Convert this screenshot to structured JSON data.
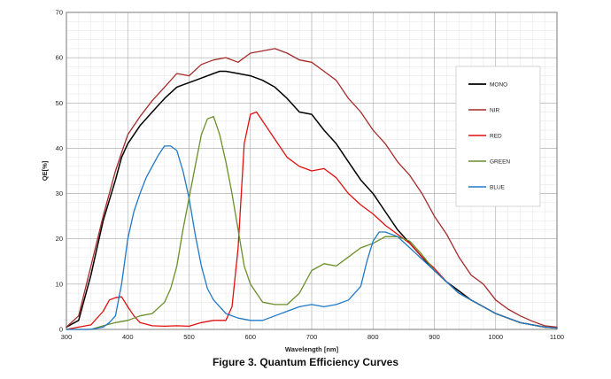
{
  "caption": "Figure 3. Quantum Efficiency Curves",
  "chart_data": {
    "type": "line",
    "xlabel": "Wavelength [nm]",
    "ylabel": "QE[%]",
    "xlim": [
      300,
      1100
    ],
    "ylim": [
      0,
      70
    ],
    "x_ticks": [
      300,
      400,
      500,
      600,
      700,
      800,
      900,
      1000,
      1100
    ],
    "y_ticks": [
      0,
      10,
      20,
      30,
      40,
      50,
      60,
      70
    ],
    "grid": true,
    "legend_position": "right",
    "series": [
      {
        "name": "MONO",
        "color": "#000000",
        "x": [
          300,
          320,
          340,
          360,
          380,
          390,
          400,
          420,
          440,
          460,
          480,
          490,
          500,
          520,
          540,
          550,
          560,
          580,
          600,
          620,
          640,
          660,
          680,
          700,
          720,
          740,
          760,
          780,
          800,
          820,
          840,
          860,
          880,
          900,
          920,
          940,
          960,
          980,
          1000,
          1020,
          1040,
          1060,
          1080,
          1100
        ],
        "y": [
          0.5,
          2,
          12,
          24,
          33,
          38,
          41,
          45,
          48,
          51,
          53.5,
          54,
          54.5,
          55.5,
          56.5,
          57,
          57,
          56.5,
          56,
          55,
          53.5,
          51,
          48,
          47.5,
          44,
          41,
          37,
          33,
          30,
          26,
          22,
          19,
          16,
          13,
          10.5,
          8.5,
          6.5,
          5,
          3.5,
          2.5,
          1.5,
          1,
          0.5,
          0.3
        ]
      },
      {
        "name": "NIR",
        "color": "#a52a2a",
        "x": [
          300,
          320,
          340,
          360,
          380,
          390,
          400,
          420,
          440,
          460,
          480,
          500,
          520,
          540,
          560,
          580,
          600,
          620,
          640,
          660,
          680,
          700,
          720,
          740,
          760,
          780,
          800,
          820,
          840,
          860,
          880,
          900,
          920,
          940,
          960,
          980,
          1000,
          1020,
          1040,
          1060,
          1080,
          1100
        ],
        "y": [
          0.5,
          3,
          14,
          25,
          35,
          39,
          43,
          47,
          50.5,
          53.5,
          56.5,
          56,
          58.5,
          59.5,
          60,
          59,
          61,
          61.5,
          62,
          61,
          59.5,
          59,
          57,
          55,
          51,
          48,
          44,
          41,
          37,
          34,
          30,
          25,
          21,
          16,
          12,
          10,
          6.5,
          4.5,
          3,
          1.8,
          0.8,
          0.5
        ]
      },
      {
        "name": "RED",
        "color": "#e01010",
        "x": [
          300,
          320,
          340,
          360,
          370,
          380,
          390,
          400,
          410,
          420,
          440,
          460,
          480,
          500,
          520,
          540,
          560,
          570,
          580,
          590,
          600,
          610,
          620,
          640,
          660,
          680,
          700,
          720,
          740,
          760,
          780,
          800,
          820,
          840,
          860,
          880,
          900,
          920,
          940,
          960,
          980,
          1000,
          1020,
          1040,
          1060,
          1080,
          1100
        ],
        "y": [
          0,
          0.5,
          1,
          4,
          6.5,
          7,
          7.2,
          5,
          3,
          1.5,
          0.8,
          0.7,
          0.8,
          0.7,
          1.5,
          2,
          2,
          5,
          18,
          41,
          47.5,
          48,
          46,
          42,
          38,
          36,
          35,
          35.5,
          33.5,
          30,
          27.5,
          25.5,
          23,
          21,
          19,
          16,
          13.5,
          10.5,
          8,
          6.5,
          5,
          3.5,
          2.5,
          1.5,
          1,
          0.5,
          0.3
        ]
      },
      {
        "name": "GREEN",
        "color": "#6a8f2a",
        "x": [
          300,
          340,
          360,
          380,
          400,
          420,
          440,
          460,
          470,
          480,
          490,
          500,
          510,
          520,
          530,
          540,
          550,
          560,
          570,
          580,
          590,
          600,
          620,
          640,
          660,
          680,
          700,
          720,
          740,
          760,
          780,
          800,
          820,
          840,
          860,
          880,
          900,
          920,
          940,
          960,
          980,
          1000,
          1020,
          1040,
          1060,
          1080,
          1100
        ],
        "y": [
          0,
          0,
          0.8,
          1.5,
          2,
          3,
          3.5,
          6,
          9,
          14,
          22,
          29,
          36,
          43,
          46.5,
          47,
          43,
          37,
          30,
          22,
          14,
          10,
          6,
          5.5,
          5.5,
          8,
          13,
          14.5,
          14,
          16,
          18,
          19,
          20.5,
          20.5,
          19.5,
          16.5,
          13,
          10.5,
          8,
          6.5,
          5,
          3.5,
          2.5,
          1.5,
          1,
          0.5,
          0.3
        ]
      },
      {
        "name": "BLUE",
        "color": "#1f78c8",
        "x": [
          300,
          340,
          360,
          370,
          380,
          390,
          400,
          410,
          420,
          430,
          440,
          450,
          460,
          470,
          480,
          490,
          500,
          510,
          520,
          530,
          540,
          560,
          580,
          600,
          620,
          640,
          660,
          680,
          700,
          720,
          740,
          760,
          770,
          780,
          790,
          800,
          810,
          820,
          840,
          860,
          880,
          900,
          920,
          940,
          960,
          980,
          1000,
          1020,
          1040,
          1060,
          1080,
          1100
        ],
        "y": [
          0,
          0,
          0.5,
          1.5,
          3,
          10,
          20,
          26,
          30,
          33.5,
          36,
          38.5,
          40.5,
          40.5,
          39.5,
          35,
          29,
          21,
          14,
          9,
          6.5,
          3.5,
          2.5,
          2,
          2,
          3,
          4,
          5,
          5.5,
          5,
          5.5,
          6.5,
          8,
          9.5,
          15,
          19.5,
          21.5,
          21.5,
          20.5,
          18,
          15.5,
          13,
          10.5,
          8,
          6.5,
          5,
          3.5,
          2.5,
          1.5,
          1,
          0.5,
          0.3
        ]
      }
    ]
  }
}
